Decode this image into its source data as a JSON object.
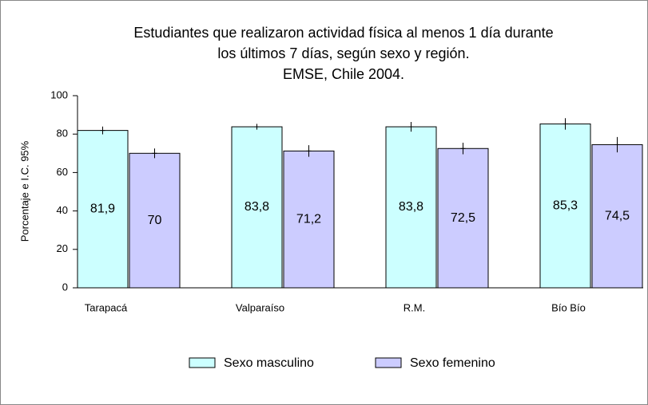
{
  "chart_data": {
    "type": "bar",
    "title_lines": [
      "Estudiantes que realizaron actividad física al menos 1 día durante",
      "los últimos 7 días, según sexo y región.",
      "EMSE, Chile 2004."
    ],
    "y_label": "Porcentaje e I.C. 95%",
    "categories": [
      "Tarapacá",
      "Valparaíso",
      "R.M.",
      "Bío Bío"
    ],
    "series": [
      {
        "name": "Sexo masculino",
        "color": "#ccffff",
        "values": [
          81.9,
          83.8,
          83.8,
          85.3
        ],
        "value_labels": [
          "81,9",
          "83,8",
          "83,8",
          "85,3"
        ],
        "errors": [
          2,
          1.5,
          2.5,
          3
        ]
      },
      {
        "name": "Sexo femenino",
        "color": "#ccccff",
        "values": [
          70,
          71.2,
          72.5,
          74.5
        ],
        "value_labels": [
          "70",
          "71,2",
          "72,5",
          "74,5"
        ],
        "errors": [
          2.5,
          3,
          3,
          4
        ]
      }
    ],
    "ylim": [
      0,
      100
    ],
    "yticks": [
      0,
      20,
      40,
      60,
      80,
      100
    ],
    "grid": false,
    "legend": "bottom"
  }
}
